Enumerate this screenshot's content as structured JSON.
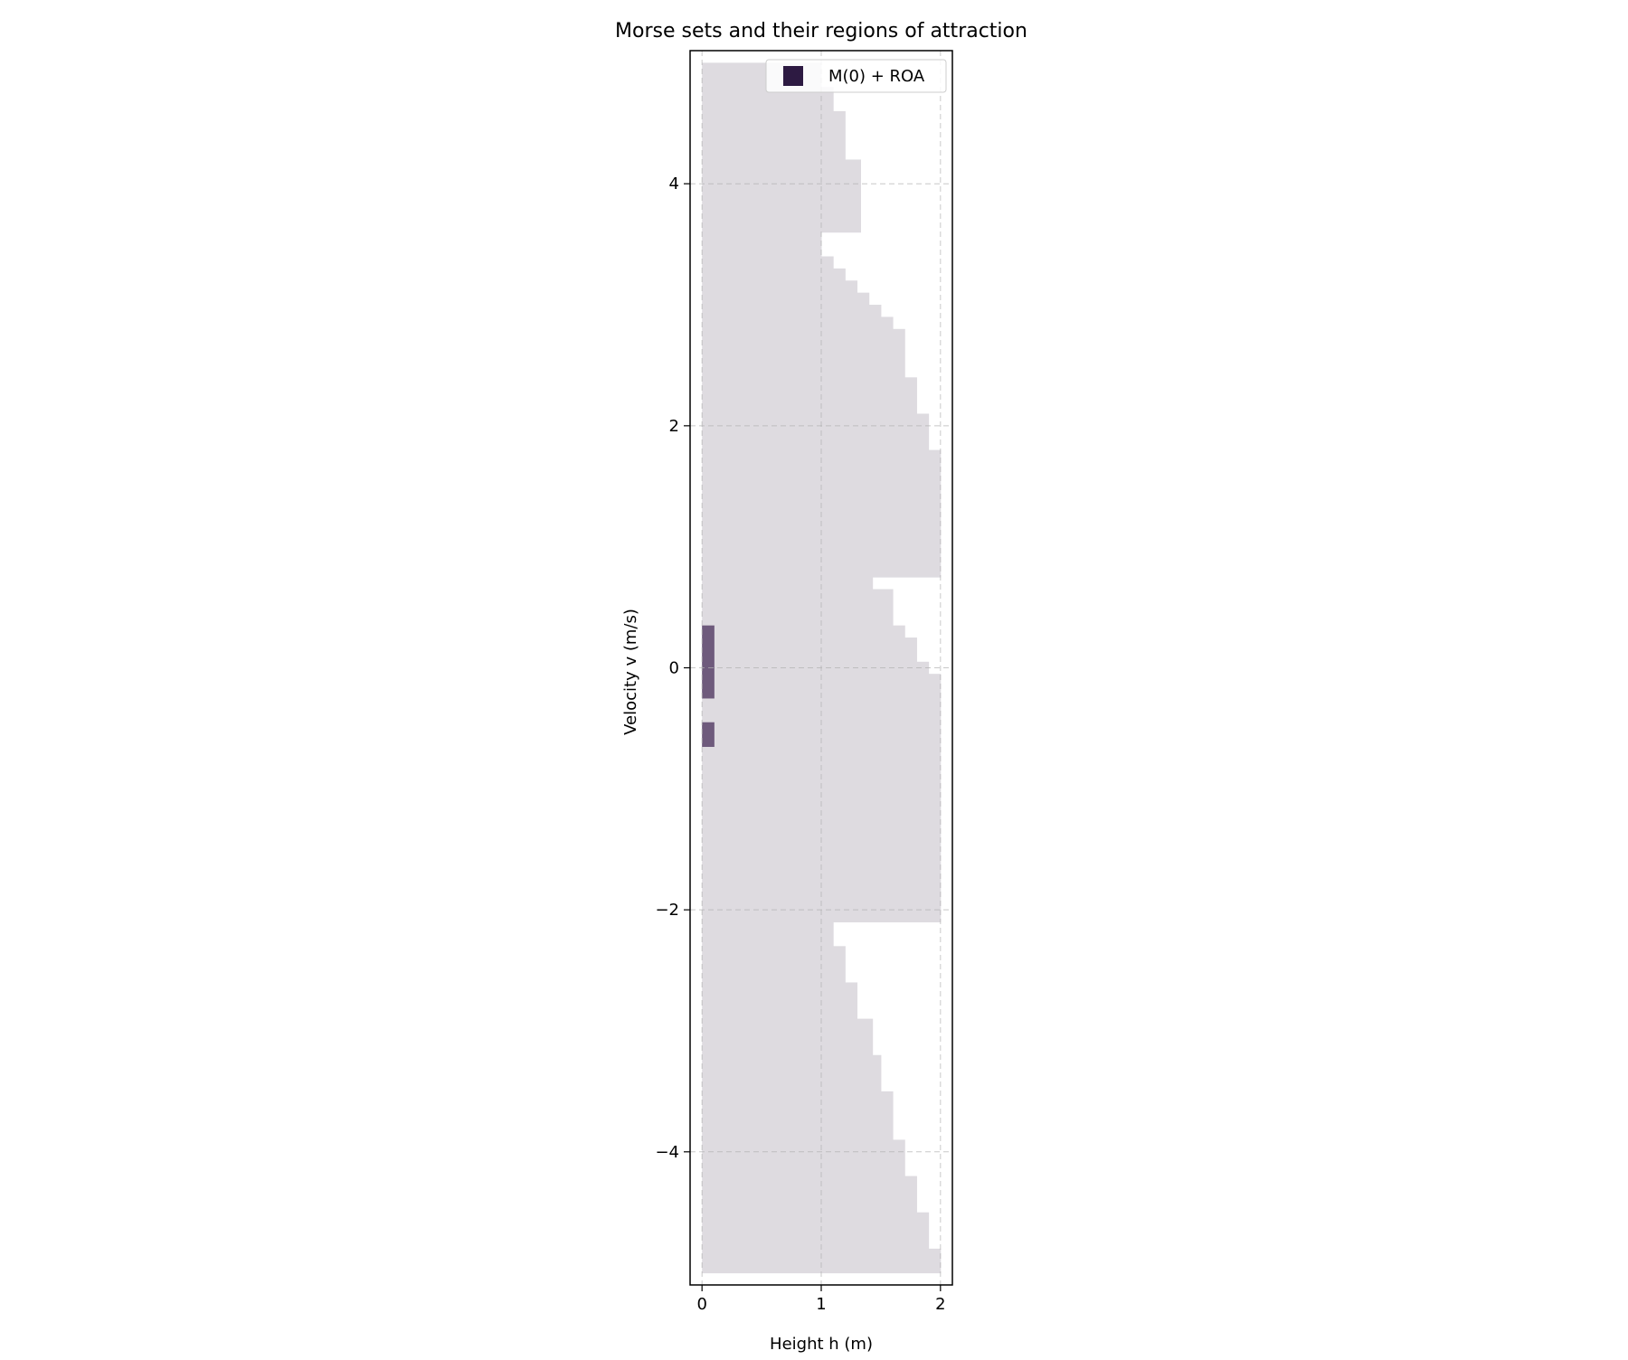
{
  "chart_data": {
    "type": "heatmap",
    "title": "Morse sets and their regions of attraction",
    "xlabel": "Height h (m)",
    "ylabel": "Velocity v (m/s)",
    "xlim": [
      -0.1,
      2.1
    ],
    "ylim": [
      -5.1,
      5.1
    ],
    "x_ticks": [
      0,
      1,
      2
    ],
    "x_tick_labels": [
      "0",
      "1",
      "2"
    ],
    "y_ticks": [
      -4,
      -2,
      0,
      2,
      4
    ],
    "y_tick_labels": [
      "−4",
      "−2",
      "0",
      "2",
      "4"
    ],
    "grid": true,
    "legend": {
      "placement": "top-right",
      "entries": [
        {
          "label": "M(0) + ROA",
          "color": "#2d1a42"
        }
      ]
    },
    "colors": {
      "roa": "#dedbe0",
      "morse_set": "#6e5a7c",
      "legend_swatch": "#2d1a42"
    },
    "series": [
      {
        "name": "M(0) + ROA",
        "role": "region-of-attraction",
        "cells": [
          {
            "h": [
              0,
              1.0
            ],
            "v": [
              4.8,
              5.0
            ]
          },
          {
            "h": [
              0,
              1.1
            ],
            "v": [
              4.6,
              4.8
            ]
          },
          {
            "h": [
              0,
              1.2
            ],
            "v": [
              4.2,
              4.6
            ]
          },
          {
            "h": [
              0,
              1.33
            ],
            "v": [
              3.6,
              4.2
            ]
          },
          {
            "h": [
              0,
              1.0
            ],
            "v": [
              3.4,
              3.6
            ]
          },
          {
            "h": [
              0,
              1.1
            ],
            "v": [
              3.3,
              3.4
            ]
          },
          {
            "h": [
              0,
              1.2
            ],
            "v": [
              3.2,
              3.3
            ]
          },
          {
            "h": [
              0,
              1.3
            ],
            "v": [
              3.1,
              3.2
            ]
          },
          {
            "h": [
              0,
              1.4
            ],
            "v": [
              3.0,
              3.1
            ]
          },
          {
            "h": [
              0,
              1.5
            ],
            "v": [
              2.9,
              3.0
            ]
          },
          {
            "h": [
              0,
              1.6
            ],
            "v": [
              2.8,
              2.9
            ]
          },
          {
            "h": [
              0,
              1.7
            ],
            "v": [
              2.4,
              2.8
            ]
          },
          {
            "h": [
              0,
              1.8
            ],
            "v": [
              2.1,
              2.4
            ]
          },
          {
            "h": [
              0,
              1.9
            ],
            "v": [
              1.8,
              2.1
            ]
          },
          {
            "h": [
              0,
              2.0
            ],
            "v": [
              0.75,
              1.8
            ]
          },
          {
            "h": [
              0,
              1.43
            ],
            "v": [
              0.65,
              0.75
            ]
          },
          {
            "h": [
              0,
              1.6
            ],
            "v": [
              0.35,
              0.65
            ]
          },
          {
            "h": [
              0,
              1.7
            ],
            "v": [
              0.25,
              0.35
            ]
          },
          {
            "h": [
              0,
              1.8
            ],
            "v": [
              0.05,
              0.25
            ]
          },
          {
            "h": [
              0,
              1.9
            ],
            "v": [
              -0.05,
              0.05
            ]
          },
          {
            "h": [
              0,
              2.0
            ],
            "v": [
              -2.1,
              -0.05
            ]
          },
          {
            "h": [
              0,
              1.1
            ],
            "v": [
              -2.3,
              -2.1
            ]
          },
          {
            "h": [
              0,
              1.2
            ],
            "v": [
              -2.6,
              -2.3
            ]
          },
          {
            "h": [
              0,
              1.3
            ],
            "v": [
              -2.9,
              -2.6
            ]
          },
          {
            "h": [
              0,
              1.43
            ],
            "v": [
              -3.2,
              -2.9
            ]
          },
          {
            "h": [
              0,
              1.5
            ],
            "v": [
              -3.5,
              -3.2
            ]
          },
          {
            "h": [
              0,
              1.6
            ],
            "v": [
              -3.9,
              -3.5
            ]
          },
          {
            "h": [
              0,
              1.7
            ],
            "v": [
              -4.2,
              -3.9
            ]
          },
          {
            "h": [
              0,
              1.8
            ],
            "v": [
              -4.5,
              -4.2
            ]
          },
          {
            "h": [
              0,
              1.9
            ],
            "v": [
              -4.8,
              -4.5
            ]
          },
          {
            "h": [
              0,
              2.0
            ],
            "v": [
              -5.0,
              -4.8
            ]
          }
        ]
      },
      {
        "name": "M(0) + ROA",
        "role": "morse-set",
        "cells": [
          {
            "h": [
              0,
              0.1
            ],
            "v": [
              -0.25,
              0.35
            ]
          },
          {
            "h": [
              0,
              0.1
            ],
            "v": [
              -0.65,
              -0.45
            ]
          }
        ]
      }
    ]
  }
}
